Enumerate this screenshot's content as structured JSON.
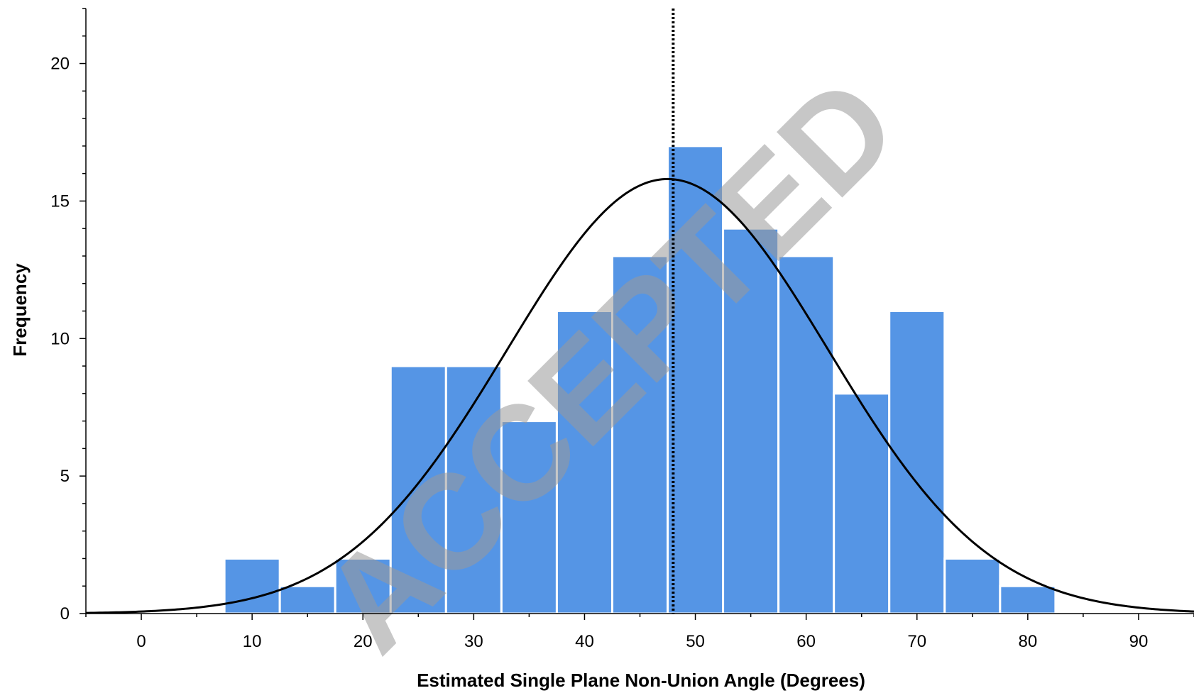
{
  "watermark": "ACCEPTED",
  "colors": {
    "bar": "#5595e5",
    "bar_edge": "#ffffff",
    "curve": "#000000",
    "axis": "#000000",
    "reference_line": "#000000"
  },
  "chart_data": {
    "type": "bar",
    "title": "",
    "xlabel": "Estimated Single Plane Non-Union Angle (Degrees)",
    "ylabel": "Frequency",
    "xlim": [
      -5,
      95
    ],
    "ylim": [
      0,
      22
    ],
    "x_ticks": [
      0,
      10,
      20,
      30,
      40,
      50,
      60,
      70,
      80,
      90
    ],
    "x_tick_labels": [
      "0",
      "10",
      "20",
      "30",
      "40",
      "50",
      "60",
      "70",
      "80",
      "90"
    ],
    "y_ticks": [
      0,
      5,
      10,
      15,
      20
    ],
    "y_tick_labels": [
      "0",
      "5",
      "10",
      "15",
      "20"
    ],
    "grid": false,
    "bin_width": 5,
    "bins": [
      {
        "start": 7.5,
        "end": 12.5,
        "value": 2
      },
      {
        "start": 12.5,
        "end": 17.5,
        "value": 1
      },
      {
        "start": 17.5,
        "end": 22.5,
        "value": 2
      },
      {
        "start": 22.5,
        "end": 27.5,
        "value": 9
      },
      {
        "start": 27.5,
        "end": 32.5,
        "value": 9
      },
      {
        "start": 32.5,
        "end": 37.5,
        "value": 7
      },
      {
        "start": 37.5,
        "end": 42.5,
        "value": 11
      },
      {
        "start": 42.5,
        "end": 47.5,
        "value": 13
      },
      {
        "start": 47.5,
        "end": 52.5,
        "value": 17
      },
      {
        "start": 52.5,
        "end": 57.5,
        "value": 14
      },
      {
        "start": 57.5,
        "end": 62.5,
        "value": 13
      },
      {
        "start": 62.5,
        "end": 67.5,
        "value": 8
      },
      {
        "start": 67.5,
        "end": 72.5,
        "value": 11
      },
      {
        "start": 72.5,
        "end": 77.5,
        "value": 2
      },
      {
        "start": 77.5,
        "end": 82.5,
        "value": 1
      }
    ],
    "normal_curve": {
      "mean": 47.5,
      "sd": 14.5,
      "peak": 15.8
    },
    "reference_line": {
      "x": 48,
      "style": "dotted"
    }
  }
}
